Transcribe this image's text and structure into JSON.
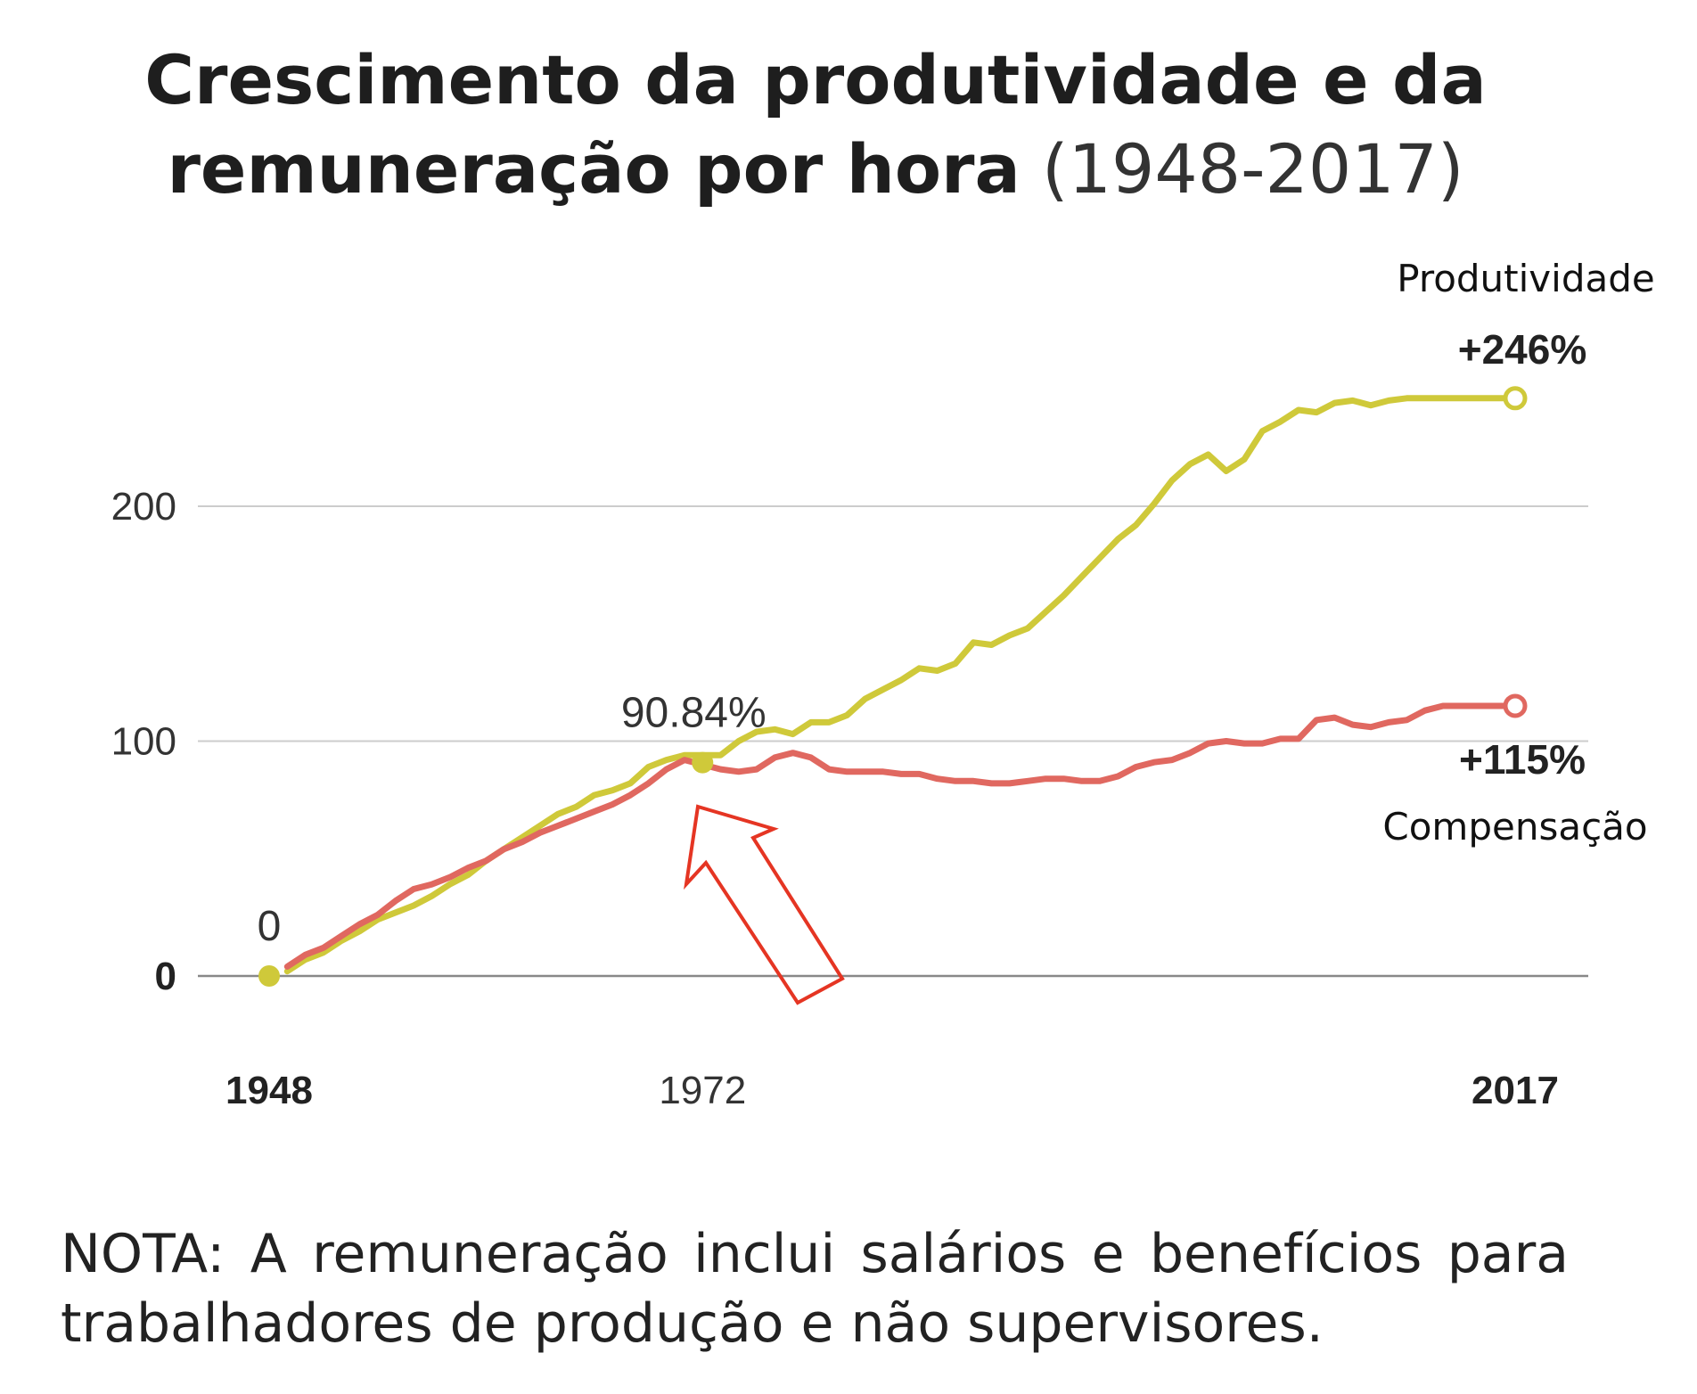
{
  "title": {
    "bold": "Crescimento da produtividade e da remuneração por hora",
    "light": "(1948-2017)"
  },
  "note": "NOTA: A remuneração inclui salários e benefícios para trabalhadores de produção e não supervisores.",
  "colors": {
    "productivity": "#cfc93a",
    "compensation": "#e06860",
    "arrow": "#e53523",
    "grid": "#cccccc",
    "axis": "#888888"
  },
  "chart_data": {
    "type": "line",
    "title": "Crescimento da produtividade e da remuneração por hora (1948-2017)",
    "xlabel": "",
    "ylabel": "",
    "xlim": [
      1948,
      2017
    ],
    "ylim": [
      -20,
      260
    ],
    "grid": true,
    "x_ticks": [
      {
        "value": 1948,
        "label": "1948",
        "bold": true
      },
      {
        "value": 1972,
        "label": "1972",
        "bold": false
      },
      {
        "value": 2017,
        "label": "2017",
        "bold": true
      }
    ],
    "y_ticks": [
      {
        "value": 0,
        "label": "0",
        "bold": true
      },
      {
        "value": 100,
        "label": "100",
        "bold": false
      },
      {
        "value": 200,
        "label": "200",
        "bold": false
      }
    ],
    "annotations": [
      {
        "x": 1948,
        "y": 0,
        "text": "0"
      },
      {
        "x": 1972,
        "y": 90.84,
        "text": "90.84%"
      }
    ],
    "series": [
      {
        "name": "Produtividade",
        "end_label": "+246%",
        "x": [
          1949,
          1950,
          1951,
          1952,
          1953,
          1954,
          1955,
          1956,
          1957,
          1958,
          1959,
          1960,
          1961,
          1962,
          1963,
          1964,
          1965,
          1966,
          1967,
          1968,
          1969,
          1970,
          1971,
          1973,
          1974,
          1975,
          1976,
          1977,
          1978,
          1979,
          1980,
          1981,
          1982,
          1983,
          1984,
          1985,
          1986,
          1987,
          1988,
          1989,
          1990,
          1991,
          1992,
          1993,
          1994,
          1995,
          1996,
          1997,
          1998,
          1999,
          2000,
          2001,
          2002,
          2003,
          2004,
          2005,
          2006,
          2007,
          2008,
          2009,
          2010,
          2011,
          2012,
          2013,
          2014,
          2015,
          2016,
          2017
        ],
        "values": [
          2,
          7,
          10,
          15,
          19,
          24,
          27,
          30,
          34,
          39,
          43,
          49,
          54,
          59,
          64,
          69,
          72,
          77,
          79,
          82,
          89,
          92,
          94,
          94,
          100,
          104,
          105,
          103,
          108,
          108,
          111,
          118,
          122,
          126,
          131,
          130,
          133,
          142,
          141,
          145,
          148,
          155,
          162,
          170,
          178,
          186,
          192,
          201,
          211,
          218,
          222,
          215,
          220,
          232,
          236,
          241,
          240,
          244,
          245,
          243,
          245,
          246,
          246,
          246,
          246,
          246,
          246,
          246
        ]
      },
      {
        "name": "Compensação",
        "end_label": "+115%",
        "x": [
          1949,
          1950,
          1951,
          1952,
          1953,
          1954,
          1955,
          1956,
          1957,
          1958,
          1959,
          1960,
          1961,
          1962,
          1963,
          1964,
          1965,
          1966,
          1967,
          1968,
          1969,
          1970,
          1971,
          1973,
          1974,
          1975,
          1976,
          1977,
          1978,
          1979,
          1980,
          1981,
          1982,
          1983,
          1984,
          1985,
          1986,
          1987,
          1988,
          1989,
          1990,
          1991,
          1992,
          1993,
          1994,
          1995,
          1996,
          1997,
          1998,
          1999,
          2000,
          2001,
          2002,
          2003,
          2004,
          2005,
          2006,
          2007,
          2008,
          2009,
          2010,
          2011,
          2012,
          2013,
          2014,
          2015,
          2016,
          2017
        ],
        "values": [
          4,
          9,
          12,
          17,
          22,
          26,
          32,
          37,
          39,
          42,
          46,
          49,
          54,
          57,
          61,
          64,
          67,
          70,
          73,
          77,
          82,
          88,
          92,
          88,
          87,
          88,
          93,
          95,
          93,
          88,
          87,
          87,
          87,
          86,
          86,
          84,
          83,
          83,
          82,
          82,
          83,
          84,
          84,
          83,
          83,
          85,
          89,
          91,
          92,
          95,
          99,
          100,
          99,
          99,
          101,
          101,
          109,
          110,
          107,
          106,
          108,
          109,
          113,
          115,
          115,
          115,
          115,
          115
        ]
      }
    ]
  }
}
